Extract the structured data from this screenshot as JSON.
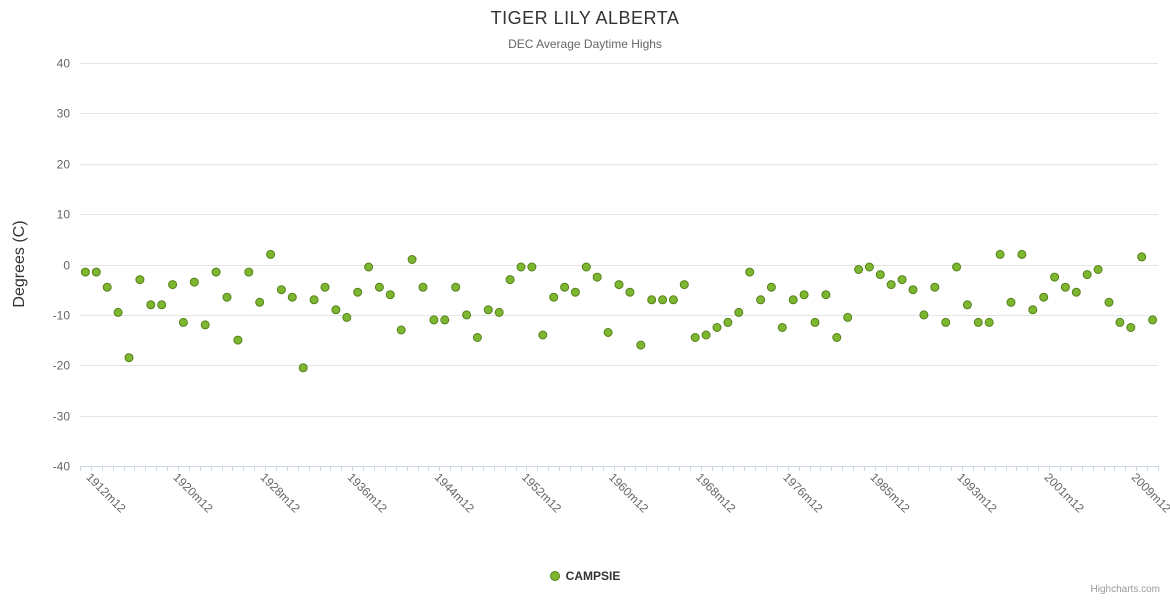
{
  "credits": "Highcharts.com",
  "chart_data": {
    "type": "scatter",
    "title": "TIGER LILY ALBERTA",
    "subtitle": "DEC Average Daytime Highs",
    "ylabel": "Degrees (C)",
    "xlabel": "",
    "ylim": [
      -40,
      40
    ],
    "ytick_interval": 10,
    "xtick_interval": 8,
    "grid": true,
    "legend_position": "bottom-center",
    "series_name": "CAMPSIE",
    "marker_color": "#7db72f",
    "marker_line_color": "#55801c",
    "grid_color": "#e6e6e6",
    "axis_line_color": "#ccd6eb",
    "tick_label_color": "#666666",
    "x_tick_labels": [
      "1912m12",
      "1920m12",
      "1928m12",
      "1936m12",
      "1944m12",
      "1952m12",
      "1960m12",
      "1968m12",
      "1976m12",
      "1985m12",
      "1993m12",
      "2001m12",
      "2009m12"
    ],
    "values": [
      [
        "1912m12",
        -1.5
      ],
      [
        "1913m12",
        -1.5
      ],
      [
        "1914m12",
        -4.5
      ],
      [
        "1915m12",
        -9.5
      ],
      [
        "1916m12",
        -18.5
      ],
      [
        "1917m12",
        -3
      ],
      [
        "1918m12",
        -8
      ],
      [
        "1919m12",
        -8
      ],
      [
        "1920m12",
        -4
      ],
      [
        "1921m12",
        -11.5
      ],
      [
        "1922m12",
        -3.5
      ],
      [
        "1923m12",
        -12
      ],
      [
        "1924m12",
        -1.5
      ],
      [
        "1925m12",
        -6.5
      ],
      [
        "1926m12",
        -15
      ],
      [
        "1927m12",
        -1.5
      ],
      [
        "1928m12",
        -7.5
      ],
      [
        "1929m12",
        2
      ],
      [
        "1930m12",
        -5
      ],
      [
        "1931m12",
        -6.5
      ],
      [
        "1932m12",
        -20.5
      ],
      [
        "1933m12",
        -7
      ],
      [
        "1934m12",
        -4.5
      ],
      [
        "1935m12",
        -9
      ],
      [
        "1936m12",
        -10.5
      ],
      [
        "1937m12",
        -5.5
      ],
      [
        "1938m12",
        -0.5
      ],
      [
        "1939m12",
        -4.5
      ],
      [
        "1940m12",
        -6
      ],
      [
        "1941m12",
        -13
      ],
      [
        "1942m12",
        1
      ],
      [
        "1943m12",
        -4.5
      ],
      [
        "1944m12",
        -11
      ],
      [
        "1945m12",
        -11
      ],
      [
        "1946m12",
        -4.5
      ],
      [
        "1947m12",
        -10
      ],
      [
        "1948m12",
        -14.5
      ],
      [
        "1949m12",
        -9
      ],
      [
        "1950m12",
        -9.5
      ],
      [
        "1951m12",
        -3
      ],
      [
        "1952m12",
        -0.5
      ],
      [
        "1953m12",
        -0.5
      ],
      [
        "1954m12",
        -14
      ],
      [
        "1955m12",
        -6.5
      ],
      [
        "1956m12",
        -4.5
      ],
      [
        "1957m12",
        -5.5
      ],
      [
        "1958m12",
        -0.5
      ],
      [
        "1959m12",
        -2.5
      ],
      [
        "1960m12",
        -13.5
      ],
      [
        "1961m12",
        -4
      ],
      [
        "1962m12",
        -5.5
      ],
      [
        "1963m12",
        -16
      ],
      [
        "1964m12",
        -7
      ],
      [
        "1965m12",
        -7
      ],
      [
        "1966m12",
        -7
      ],
      [
        "1967m12",
        -4
      ],
      [
        "1968m12",
        -14.5
      ],
      [
        "1969m12",
        -14
      ],
      [
        "1970m12",
        -12.5
      ],
      [
        "1971m12",
        -11.5
      ],
      [
        "1972m12",
        -9.5
      ],
      [
        "1973m12",
        -1.5
      ],
      [
        "1974m12",
        -7
      ],
      [
        "1975m12",
        -4.5
      ],
      [
        "1976m12",
        -12.5
      ],
      [
        "1978m12",
        -7
      ],
      [
        "1979m12",
        -6
      ],
      [
        "1980m12",
        -11.5
      ],
      [
        "1981m12",
        -6
      ],
      [
        "1982m12",
        -14.5
      ],
      [
        "1983m12",
        -10.5
      ],
      [
        "1984m12",
        -1
      ],
      [
        "1985m12",
        -0.5
      ],
      [
        "1986m12",
        -2
      ],
      [
        "1987m12",
        -4
      ],
      [
        "1988m12",
        -3
      ],
      [
        "1989m12",
        -5
      ],
      [
        "1990m12",
        -10
      ],
      [
        "1991m12",
        -4.5
      ],
      [
        "1992m12",
        -11.5
      ],
      [
        "1993m12",
        -0.5
      ],
      [
        "1994m12",
        -8
      ],
      [
        "1995m12",
        -11.5
      ],
      [
        "1996m12",
        -11.5
      ],
      [
        "1997m12",
        2
      ],
      [
        "1998m12",
        -7.5
      ],
      [
        "1999m12",
        2
      ],
      [
        "2000m12",
        -9
      ],
      [
        "2001m12",
        -6.5
      ],
      [
        "2002m12",
        -2.5
      ],
      [
        "2003m12",
        -4.5
      ],
      [
        "2004m12",
        -5.5
      ],
      [
        "2005m12",
        -2
      ],
      [
        "2006m12",
        -1
      ],
      [
        "2007m12",
        -7.5
      ],
      [
        "2008m12",
        -11.5
      ],
      [
        "2009m12",
        -12.5
      ],
      [
        "2010m12",
        1.5
      ],
      [
        "2011m12",
        -11
      ]
    ]
  }
}
